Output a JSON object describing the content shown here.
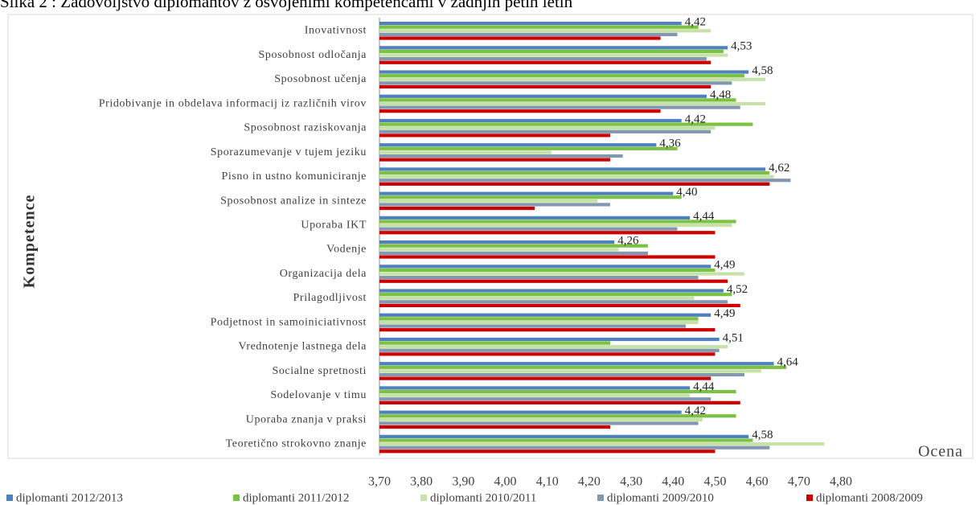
{
  "chart_data": {
    "type": "bar",
    "orientation": "horizontal",
    "title": "Slika 2 : Zadovoljstvo diplomantov z osvojenimi kompetencami v zadnjih petih letih",
    "ylabel": "Kompetence",
    "xlabel": "Ocena",
    "categories": [
      "Inovativnost",
      "Sposobnost odločanja",
      "Sposobnost učenja",
      "Pridobivanje in obdelava informacij iz različnih virov",
      "Sposobnost raziskovanja",
      "Sporazumevanje v tujem jeziku",
      "Pisno in ustno komuniciranje",
      "Sposobnost analize in sinteze",
      "Uporaba IKT",
      "Vodenje",
      "Organizacija dela",
      "Prilagodljivost",
      "Podjetnost in samoiniciativnost",
      "Vrednotenje lastnega dela",
      "Socialne spretnosti",
      "Sodelovanje v timu",
      "Uporaba znanja v praksi",
      "Teoretično strokovno znanje"
    ],
    "series": [
      {
        "name": "diplomanti 2012/2013",
        "color": "#4f81bd",
        "values": [
          4.42,
          4.53,
          4.58,
          4.48,
          4.42,
          4.36,
          4.62,
          4.4,
          4.44,
          4.26,
          4.49,
          4.52,
          4.49,
          4.51,
          4.64,
          4.44,
          4.42,
          4.58
        ],
        "value_labels": [
          "4,42",
          "4,53",
          "4,58",
          "4,48",
          "4,42",
          "4,36",
          "4,62",
          "4,40",
          "4,44",
          "4,26",
          "4,49",
          "4,52",
          "4,49",
          "4,51",
          "4,64",
          "4,44",
          "4,42",
          "4,58"
        ]
      },
      {
        "name": "diplomanti 2011/2012",
        "color": "#7cc242",
        "values": [
          4.46,
          4.52,
          4.57,
          4.55,
          4.59,
          4.41,
          4.63,
          4.42,
          4.55,
          4.34,
          4.5,
          4.54,
          4.46,
          4.25,
          4.67,
          4.55,
          4.55,
          4.59
        ]
      },
      {
        "name": "diplomanti 2010/2011",
        "color": "#c6e2a9",
        "values": [
          4.49,
          4.53,
          4.62,
          4.62,
          4.5,
          4.11,
          4.64,
          4.22,
          4.54,
          4.27,
          4.57,
          4.45,
          4.46,
          4.53,
          4.61,
          4.44,
          4.47,
          4.76
        ]
      },
      {
        "name": "diplomanti 2009/2010",
        "color": "#8497b0",
        "values": [
          4.41,
          4.48,
          4.54,
          4.56,
          4.49,
          4.28,
          4.68,
          4.25,
          4.41,
          4.34,
          4.46,
          4.53,
          4.43,
          4.51,
          4.57,
          4.49,
          4.46,
          4.63
        ]
      },
      {
        "name": "diplomanti 2008/2009",
        "color": "#cc0000",
        "values": [
          4.37,
          4.49,
          4.49,
          4.37,
          4.25,
          4.25,
          4.63,
          4.07,
          4.5,
          4.5,
          4.53,
          4.56,
          4.5,
          4.5,
          4.49,
          4.56,
          4.25,
          4.5
        ]
      }
    ],
    "xlim": [
      3.7,
      4.8
    ],
    "xticks": [
      {
        "value": 3.7,
        "label": "3,70"
      },
      {
        "value": 3.8,
        "label": "3,80"
      },
      {
        "value": 3.9,
        "label": "3,90"
      },
      {
        "value": 4.0,
        "label": "4,00"
      },
      {
        "value": 4.1,
        "label": "4,10"
      },
      {
        "value": 4.2,
        "label": "4,20"
      },
      {
        "value": 4.3,
        "label": "4,30"
      },
      {
        "value": 4.4,
        "label": "4,40"
      },
      {
        "value": 4.5,
        "label": "4,50"
      },
      {
        "value": 4.6,
        "label": "4,60"
      },
      {
        "value": 4.7,
        "label": "4,70"
      },
      {
        "value": 4.8,
        "label": "4,80"
      }
    ],
    "grid": false,
    "legend": "bottom"
  }
}
